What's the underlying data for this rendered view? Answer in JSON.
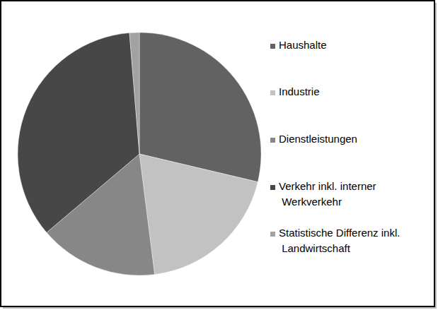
{
  "chart_data": {
    "type": "pie",
    "categories": [
      "Haushalte",
      "Industrie",
      "Dienstleistungen",
      "Verkehr inkl. interner Werkverkehr",
      "Statistische Differenz inkl. Landwirtschaft"
    ],
    "values": [
      28.7,
      19.3,
      15.8,
      34.9,
      1.3
    ],
    "colors": [
      "#626262",
      "#c2c2c2",
      "#878787",
      "#474747",
      "#a2a2a2"
    ],
    "legend": "right"
  }
}
